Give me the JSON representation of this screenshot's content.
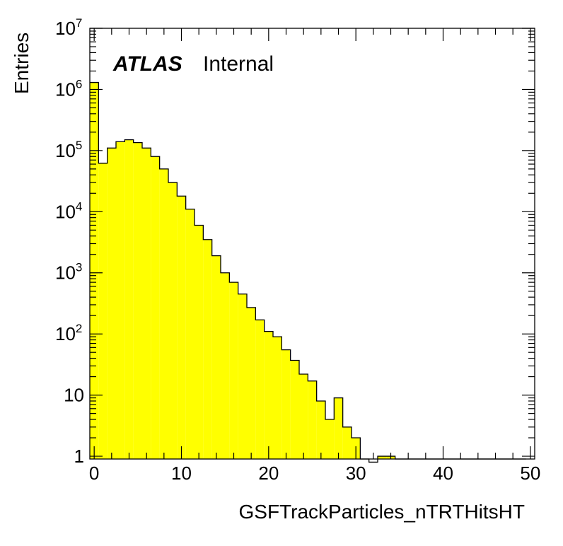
{
  "chart_data": {
    "type": "bar",
    "histogram": true,
    "title": "",
    "label": {
      "experiment": "ATLAS",
      "status": "Internal"
    },
    "xlabel": "GSFTrackParticles_nTRTHitsHT",
    "ylabel": "Entries",
    "xlim": [
      -0.5,
      50.5
    ],
    "ylim": [
      0.9,
      10000000
    ],
    "yscale": "log",
    "bin_width": 1,
    "bin_edges_start": -0.5,
    "fill_color": "#ffff00",
    "line_color": "#000000",
    "values": [
      1300000,
      62000,
      110000,
      140000,
      150000,
      135000,
      110000,
      80000,
      50000,
      30000,
      18000,
      11000,
      6000,
      3500,
      1900,
      1000,
      700,
      450,
      270,
      170,
      110,
      90,
      55,
      37,
      22,
      17,
      8,
      4,
      9,
      3,
      2,
      0,
      0.8,
      1,
      1,
      0,
      0,
      0,
      0,
      0,
      0,
      0,
      0,
      0,
      0,
      0,
      0,
      0,
      0,
      0
    ],
    "x_ticks": [
      "0",
      "10",
      "20",
      "30",
      "40",
      "50"
    ],
    "y_ticks": [
      {
        "base": "1",
        "exp": ""
      },
      {
        "base": "10",
        "exp": ""
      },
      {
        "base": "10",
        "exp": "2"
      },
      {
        "base": "10",
        "exp": "3"
      },
      {
        "base": "10",
        "exp": "4"
      },
      {
        "base": "10",
        "exp": "5"
      },
      {
        "base": "10",
        "exp": "6"
      },
      {
        "base": "10",
        "exp": "7"
      }
    ],
    "grid": false,
    "legend": "none"
  }
}
